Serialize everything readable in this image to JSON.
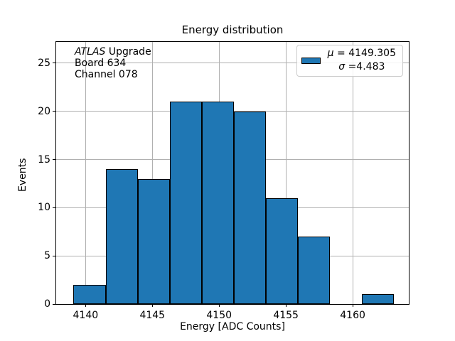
{
  "chart_data": {
    "type": "histogram",
    "title": "Energy distribution",
    "xlabel": "Energy [ADC Counts]",
    "ylabel": "Events",
    "bin_edges": [
      4139.1,
      4141.5,
      4143.9,
      4146.3,
      4148.7,
      4151.1,
      4153.5,
      4155.9,
      4158.3,
      4160.7,
      4163.1
    ],
    "counts": [
      2,
      14,
      13,
      21,
      21,
      20,
      11,
      7,
      0,
      1
    ],
    "xlim": [
      4137.8,
      4164.2
    ],
    "ylim": [
      0,
      27.2
    ],
    "xticks": [
      4140,
      4145,
      4150,
      4155,
      4160
    ],
    "yticks": [
      0,
      5,
      10,
      15,
      20,
      25
    ],
    "grid": true,
    "legend": {
      "position": "upper right",
      "lines": [
        {
          "symbol": "μ",
          "text": " = 4149.305"
        },
        {
          "symbol": "σ",
          "text": " =4.483"
        }
      ]
    },
    "annotation": {
      "lines": [
        {
          "italic": "ATLAS",
          "text": " Upgrade"
        },
        {
          "italic": "",
          "text": "Board 634"
        },
        {
          "italic": "",
          "text": "Channel 078"
        }
      ]
    },
    "colors": {
      "bar_fill": "#1f77b4",
      "bar_edge": "#000000",
      "grid": "#b0b0b0",
      "axes": "#000000",
      "legend_border": "#cccccc",
      "background": "#ffffff",
      "text": "#000000"
    }
  }
}
